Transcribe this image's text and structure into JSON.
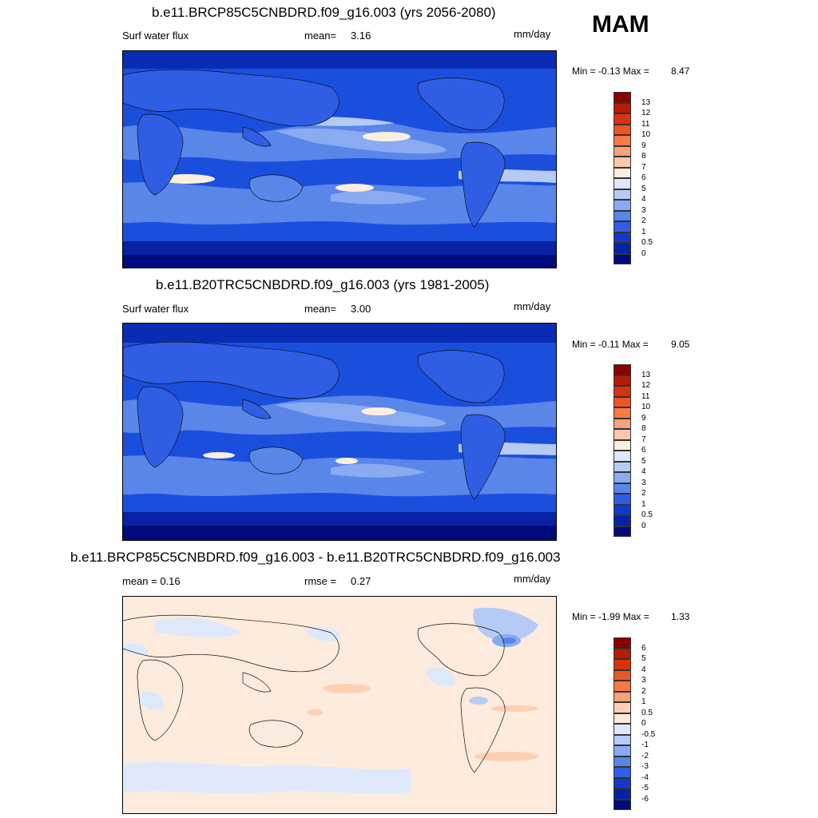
{
  "season": "MAM",
  "panels": [
    {
      "title": "b.e11.BRCP85C5CNBDRD.f09_g16.003 (yrs 2056-2080)",
      "left_label": "Surf water flux",
      "stat1_label": "mean=",
      "stat1_value": "3.16",
      "units": "mm/day",
      "minmax_label": "Min =  -0.13 Max =",
      "max_value": "8.47",
      "colorbar": {
        "labels": [
          "13",
          "12",
          "11",
          "10",
          "9",
          "8",
          "7",
          "6",
          "5",
          "4",
          "3",
          "2",
          "1",
          "0.5",
          "0"
        ],
        "colors": [
          "#8b0000",
          "#b81a08",
          "#d8330e",
          "#ee5522",
          "#fa7a44",
          "#fca27a",
          "#fdc8aa",
          "#fdeedd",
          "#dde9fb",
          "#b5cbf6",
          "#8aabf1",
          "#5a86ea",
          "#2f5ee5",
          "#1339cc",
          "#0723a4",
          "#000a7c"
        ]
      }
    },
    {
      "title": "b.e11.B20TRC5CNBDRD.f09_g16.003 (yrs 1981-2005)",
      "left_label": "Surf water flux",
      "stat1_label": "mean=",
      "stat1_value": "3.00",
      "units": "mm/day",
      "minmax_label": "Min =  -0.11 Max =",
      "max_value": "9.05",
      "colorbar": {
        "labels": [
          "13",
          "12",
          "11",
          "10",
          "9",
          "8",
          "7",
          "6",
          "5",
          "4",
          "3",
          "2",
          "1",
          "0.5",
          "0"
        ],
        "colors": [
          "#8b0000",
          "#b81a08",
          "#d8330e",
          "#ee5522",
          "#fa7a44",
          "#fca27a",
          "#fdc8aa",
          "#fdeedd",
          "#dde9fb",
          "#b5cbf6",
          "#8aabf1",
          "#5a86ea",
          "#2f5ee5",
          "#1339cc",
          "#0723a4",
          "#000a7c"
        ]
      }
    },
    {
      "title": "b.e11.BRCP85C5CNBDRD.f09_g16.003 - b.e11.B20TRC5CNBDRD.f09_g16.003",
      "left_label": "mean =   0.16",
      "stat1_label": "rmse =",
      "stat1_value": "0.27",
      "units": "mm/day",
      "minmax_label": "Min =  -1.99 Max =",
      "max_value": "1.33",
      "colorbar": {
        "labels": [
          "6",
          "5",
          "4",
          "3",
          "2",
          "1",
          "0.5",
          "0",
          "-0.5",
          "-1",
          "-2",
          "-3",
          "-4",
          "-5",
          "-6"
        ],
        "colors": [
          "#8b0000",
          "#b81a08",
          "#d8330e",
          "#ee5522",
          "#fa7a44",
          "#fca27a",
          "#fdd0b5",
          "#fdebdd",
          "#dde9fb",
          "#b5cbf6",
          "#8aabf1",
          "#5a86ea",
          "#2f5ee5",
          "#1339cc",
          "#0723a4",
          "#000a7c"
        ]
      }
    }
  ]
}
